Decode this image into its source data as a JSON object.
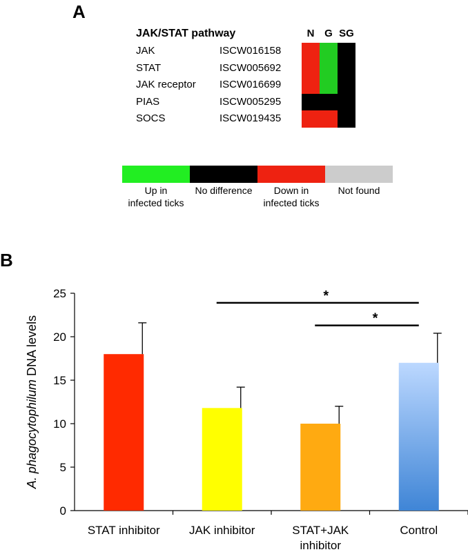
{
  "panels": {
    "a_label": "A",
    "b_label": "B"
  },
  "heatmap": {
    "title": "JAK/STAT pathway",
    "columns": [
      "N",
      "G",
      "SG"
    ],
    "rows": [
      {
        "name": "JAK",
        "id": "ISCW016158",
        "cells": [
          "down",
          "up",
          "nodiff"
        ]
      },
      {
        "name": "STAT",
        "id": "ISCW005692",
        "cells": [
          "down",
          "up",
          "nodiff"
        ]
      },
      {
        "name": "JAK receptor",
        "id": "ISCW016699",
        "cells": [
          "down",
          "up",
          "nodiff"
        ]
      },
      {
        "name": "PIAS",
        "id": "ISCW005295",
        "cells": [
          "nodiff",
          "nodiff",
          "nodiff"
        ]
      },
      {
        "name": "SOCS",
        "id": "ISCW019435",
        "cells": [
          "down",
          "down",
          "nodiff"
        ]
      }
    ],
    "colors": {
      "up": "#22cc22",
      "nodiff": "#000000",
      "down": "#ee2211",
      "notfound": "#cccccc"
    }
  },
  "legend": {
    "items": [
      {
        "key": "up",
        "line1": "Up in",
        "line2": "infected ticks",
        "color": "#22ee22"
      },
      {
        "key": "nodiff",
        "line1": "No difference",
        "line2": "",
        "color": "#000000"
      },
      {
        "key": "down",
        "line1": "Down in",
        "line2": "infected ticks",
        "color": "#ee2211"
      },
      {
        "key": "notfound",
        "line1": "Not found",
        "line2": "",
        "color": "#cccccc"
      }
    ]
  },
  "chart_data": {
    "type": "bar",
    "categories": [
      "STAT inhibitor",
      "JAK inhibitor",
      "STAT+JAK inhibitor",
      "Control"
    ],
    "category_lines": [
      [
        "STAT inhibitor"
      ],
      [
        "JAK inhibitor"
      ],
      [
        "STAT+JAK",
        "inhibitor"
      ],
      [
        "Control"
      ]
    ],
    "values": [
      18,
      11.8,
      10,
      17
    ],
    "errors": [
      3.6,
      2.4,
      2.0,
      3.4
    ],
    "bar_colors": [
      "#ff2a00",
      "#ffff00",
      "#ffaa11",
      "#6fa6e6"
    ],
    "ylabel_italic": "A. phagocytophilum",
    "ylabel_rest": " DNA levels",
    "ylim": [
      0,
      25
    ],
    "yticks": [
      0,
      5,
      10,
      15,
      20,
      25
    ],
    "significance": [
      {
        "from": 1,
        "to": 3,
        "label": "*",
        "y": 23.9
      },
      {
        "from": 2,
        "to": 3,
        "label": "*",
        "y": 21.3
      }
    ],
    "grid": false
  }
}
